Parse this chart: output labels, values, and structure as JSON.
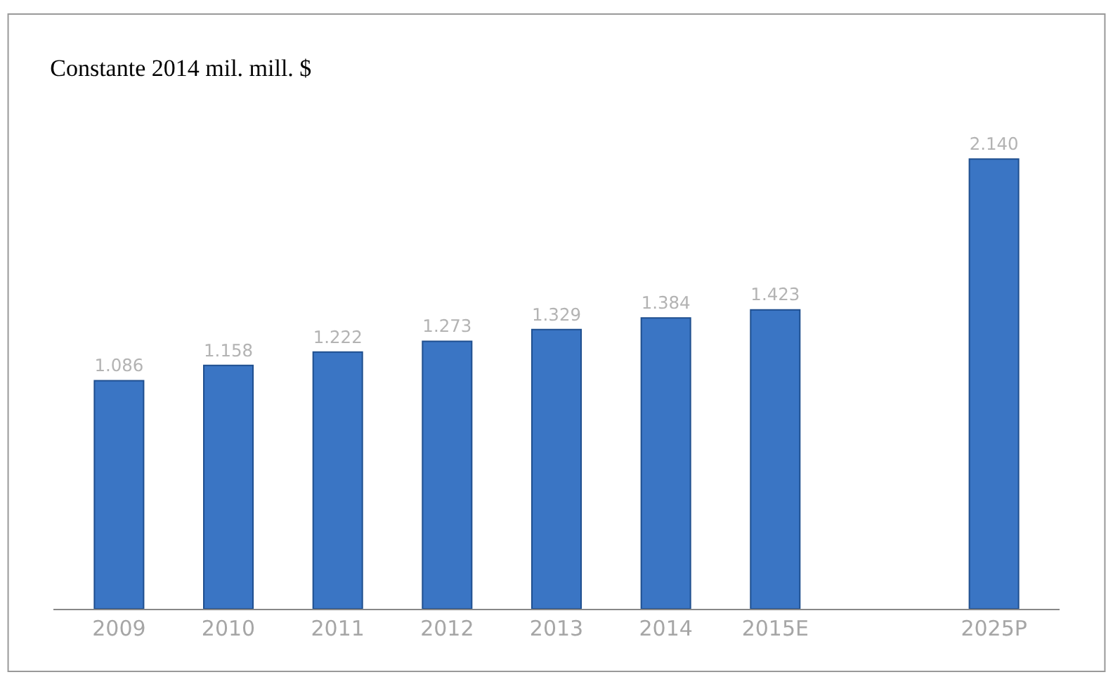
{
  "chart_data": {
    "type": "bar",
    "title": "Constante 2014 mil. mill. $",
    "categories": [
      "2009",
      "2010",
      "2011",
      "2012",
      "2013",
      "2014",
      "2015E",
      null,
      "2025P"
    ],
    "values": [
      1086,
      1158,
      1222,
      1273,
      1329,
      1384,
      1423,
      null,
      2140
    ],
    "value_labels": [
      "1.086",
      "1.158",
      "1.222",
      "1.273",
      "1.329",
      "1.384",
      "1.423",
      null,
      "2.140"
    ],
    "color": "#3a75c4"
  }
}
